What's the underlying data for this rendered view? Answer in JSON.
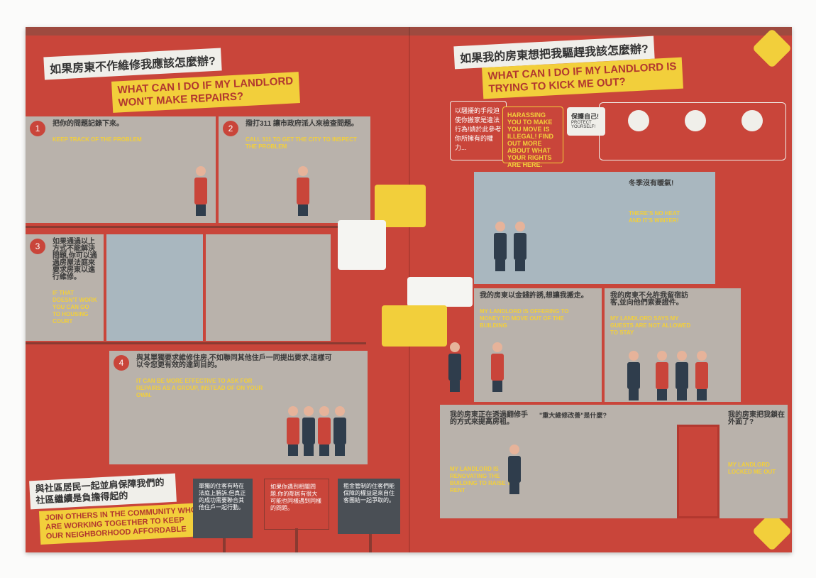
{
  "left": {
    "title_cn": "如果房東不作維修我應該怎麼辦?",
    "title_en_lines": [
      "WHAT CAN I DO IF MY LANDLORD",
      "WON'T MAKE REPAIRS?"
    ]
  },
  "right": {
    "title_cn": "如果我的房東想把我驅趕我該怎麼辦?",
    "title_en_lines": [
      "WHAT CAN I DO IF MY LANDLORD IS",
      "TRYING TO KICK ME OUT?"
    ],
    "harassing_cn": "以騷擾的手段迫使你搬家是違法行為!請於此參考你所擁有的權力...",
    "harassing_en": "HARASSING YOU TO MAKE YOU MOVE IS ILLEGAL! FIND OUT MORE ABOUT WHAT YOUR RIGHTS ARE HERE.",
    "protect_title": "保護自己!",
    "protect_en": "PROTECT YOURSELF!",
    "no_heat_cn": "冬季沒有暖氣!",
    "no_heat_en": [
      "THERE'S NO HEAT",
      "AND IT'S WINTER!"
    ],
    "enter_cn": "我的房東以金錢許誘,想讓我搬走。",
    "enter_en": "MY LANDLORD IS OFFERING TO MONEY TO MOVE OUT OF THE BUILDING",
    "visitors_cn": "我的房東不允許我留宿訪客,並向他們索要證件。",
    "visitors_en": "MY LANDLORD SAYS MY GUESTS ARE NOT ALLOWED TO STAY",
    "renovating_cn": "我的房東正在透過翻修手的方式來提高房租。",
    "renovating_en": "MY LANDLORD IS RENOVATING THE BUILDING TO RAISE THE RENT",
    "rent_title_cn": "\"重大維修改善\"是什麼?",
    "outside_cn": "我的房東把我鎖在外面了?",
    "outside_en": "MY LANDLORD LOCKED ME OUT"
  },
  "steps": [
    {
      "num": "1",
      "cn": "把你的問題記錄下來。",
      "en": "KEEP TRACK OF THE PROBLEM"
    },
    {
      "num": "2",
      "cn": "撥打311 讓市政府派人來檢查問題。",
      "en": "CALL 311 TO GET THE CITY TO INSPECT THE PROBLEM"
    },
    {
      "num": "3",
      "cn": "如果通過以上方式不能解決問題,你可以通過房屋法庭來要求房東以進行維修。",
      "en": "IF THAT DOESN'T WORK YOU CAN GO TO HOUSING COURT"
    },
    {
      "num": "4",
      "cn": "與其單獨要求維修住房,不如聯同其他住戶一同提出要求,這樣可以令您更有效的達到目的。",
      "en": "IT CAN BE MORE EFFECTIVE TO ASK FOR REPAIRS AS A GROUP, INSTEAD OF ON YOUR OWN."
    }
  ],
  "bottom": {
    "join_cn": "與社區居民一起並肩保障我們的社區繼續是負擔得起的",
    "join_en_lines": [
      "JOIN OTHERS IN THE COMMUNITY WHO",
      "ARE WORKING TOGETHER TO KEEP",
      "OUR NEIGHBORHOOD AFFORDABLE"
    ],
    "signs": [
      {
        "cn": "單獨的住客有時在法庭上勝訴,但真正的成功需要聯合其他住戶一起行動。",
        "en": "INDIVIDUAL TENANTS CAN SOMETIMES WIN IN COURT, BUT THE REAL VICTORIES COME FROM ORGANIZING."
      },
      {
        "cn": "如果你遇到相關問題,你的鄰居有很大可能也同樣遇到同樣的問題。",
        "en": "IF YOU'RE HAVING A PROBLEM, YOUR NEIGHBORS ARE PROBABLY EXPERIENCING THE SAME THING."
      },
      {
        "cn": "租金管制的住客們能保障的權益是來自住客團結一起爭取的。",
        "en": "RENT STABILIZED TENANTS OWE IMPORTANT PROTECTIONS TO TENANT ORGANIZING."
      }
    ]
  },
  "colors": {
    "red": "#c9453a",
    "yellow": "#f2cf3b",
    "grey": "#b9b2ab",
    "blue": "#a9b7bf",
    "navy": "#2f3d4c"
  }
}
